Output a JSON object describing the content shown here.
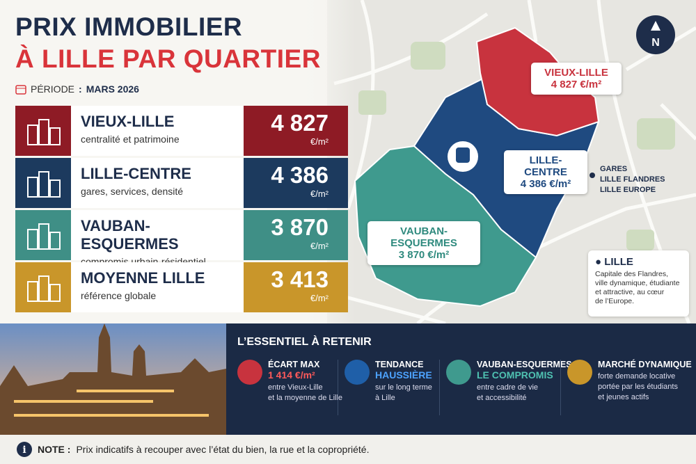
{
  "header": {
    "title_line1": "PRIX IMMOBILIER",
    "title_line2": "À LILLE PAR QUARTIER",
    "period_label": "PÉRIODE",
    "period_sep": ":",
    "period_value": "MARS 2026"
  },
  "rows": [
    {
      "name": "VIEUX-LILLE",
      "description": "centralité et patrimoine",
      "price": "4 827",
      "unit": "€/m²"
    },
    {
      "name": "LILLE-CENTRE",
      "description": "gares, services, densité",
      "price": "4 386",
      "unit": "€/m²"
    },
    {
      "name": "VAUBAN-ESQUERMES",
      "description": "compromis urbain-résidentiel",
      "price": "3 870",
      "unit": "€/m²"
    },
    {
      "name": "MOYENNE LILLE",
      "description": "référence globale",
      "price": "3 413",
      "unit": "€/m²"
    }
  ],
  "map": {
    "north": "N",
    "labels": [
      {
        "name": "VIEUX-LILLE",
        "price": "4 827 €/m²"
      },
      {
        "name": "LILLE-CENTRE",
        "price": "4 386 €/m²"
      },
      {
        "name": "VAUBAN-ESQUERMES",
        "price": "3 870 €/m²"
      }
    ],
    "stations": [
      "GARES",
      "LILLE FLANDRES",
      "LILLE EUROPE"
    ],
    "city": {
      "name": "LILLE",
      "description": [
        "Capitale des Flandres,",
        "ville dynamique, étudiante",
        "et attractive, au cœur",
        "de l’Europe."
      ]
    }
  },
  "essentials": {
    "title": "L’ESSENTIEL À RETENIR",
    "items": [
      {
        "title": "ÉCART MAX",
        "highlight": "1 414 €/m²",
        "text": [
          "entre Vieux-Lille",
          "et la moyenne de Lille"
        ]
      },
      {
        "title": "TENDANCE",
        "highlight": "HAUSSIÈRE",
        "text": [
          "sur le long terme",
          "à Lille"
        ]
      },
      {
        "title": "VAUBAN-ESQUERMES",
        "highlight": "LE COMPROMIS",
        "text": [
          "entre cadre de vie",
          "et accessibilité"
        ]
      },
      {
        "title": "MARCHÉ DYNAMIQUE",
        "text": [
          "forte demande locative",
          "portée par les étudiants",
          "et jeunes actifs"
        ]
      }
    ]
  },
  "note": {
    "label": "NOTE :",
    "text": "Prix indicatifs à recouper avec l’état du bien, la rue et la copropriété."
  }
}
